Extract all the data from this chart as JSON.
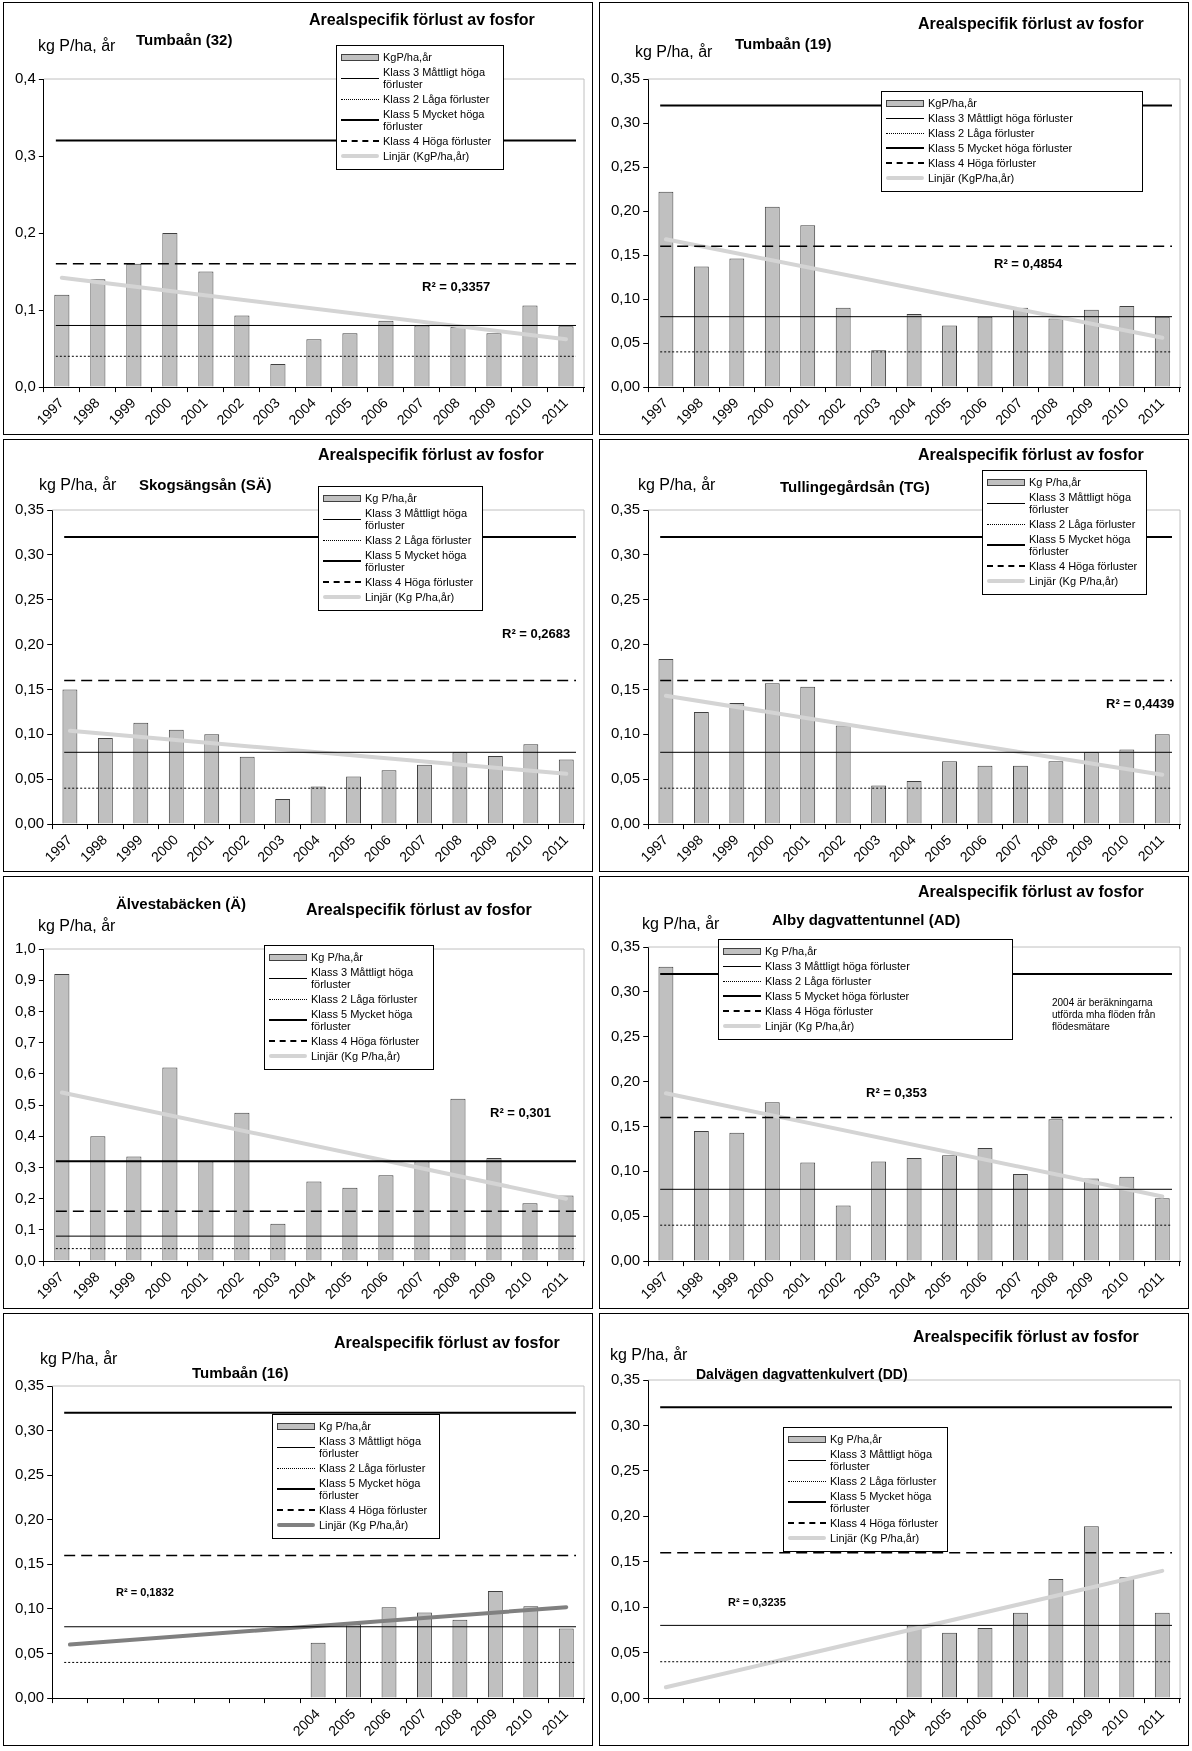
{
  "chart_data": [
    {
      "type": "bar",
      "title": "Arealspecifik förlust av fosfor",
      "subtitle": "Tumbaån (32)",
      "ylabel": "kg P/ha, år",
      "categories": [
        "1997",
        "1998",
        "1999",
        "2000",
        "2001",
        "2002",
        "2003",
        "2004",
        "2005",
        "2006",
        "2007",
        "2008",
        "2009",
        "2010",
        "2011"
      ],
      "series": [
        {
          "name": "KgP/ha,år",
          "color": "#c0c0c0",
          "values": [
            0.12,
            0.14,
            0.16,
            0.2,
            0.15,
            0.093,
            0.03,
            0.062,
            0.07,
            0.086,
            0.08,
            0.078,
            0.07,
            0.106,
            0.079
          ]
        },
        {
          "name": "Linjär (KgP/ha,år)",
          "type": "line",
          "color": "#d4d4d4",
          "values": [
            0.142,
            null,
            null,
            null,
            null,
            null,
            null,
            null,
            null,
            null,
            null,
            null,
            null,
            null,
            0.062
          ]
        }
      ],
      "ylim": [
        0,
        0.4
      ],
      "yticks": [
        {
          "value": 0,
          "label": "0,0"
        },
        {
          "value": 0.1,
          "label": "0,1"
        },
        {
          "value": 0.2,
          "label": "0,2"
        },
        {
          "value": 0.3,
          "label": "0,3"
        },
        {
          "value": 0.4,
          "label": "0,4"
        }
      ],
      "ref_lines": [
        {
          "axis": "y",
          "value": 0.08,
          "label": "Klass 3 Måttligt höga förluster",
          "color": "#000000",
          "line_style": "solid"
        },
        {
          "axis": "y",
          "value": 0.04,
          "label": "Klass 2 Låga förluster",
          "color": "#000000",
          "line_style": "dotted"
        },
        {
          "axis": "y",
          "value": 0.32,
          "label": "Klass 5 Mycket höga förluster",
          "color": "#000000",
          "line_style": "solid"
        },
        {
          "axis": "y",
          "value": 0.16,
          "label": "Klass 4 Höga förluster",
          "color": "#000000",
          "line_style": "dashed"
        }
      ],
      "annotations": [
        "R² = 0,3357"
      ],
      "legend": "top"
    },
    {
      "type": "bar",
      "title": "Arealspecifik förlust av fosfor",
      "subtitle": "Tumbaån (19)",
      "ylabel": "kg P/ha, år",
      "categories": [
        "1997",
        "1998",
        "1999",
        "2000",
        "2001",
        "2002",
        "2003",
        "2004",
        "2005",
        "2006",
        "2007",
        "2008",
        "2009",
        "2010",
        "2011"
      ],
      "series": [
        {
          "name": "KgP/ha,år",
          "color": "#c0c0c0",
          "values": [
            0.222,
            0.137,
            0.146,
            0.205,
            0.184,
            0.09,
            0.042,
            0.083,
            0.07,
            0.08,
            0.09,
            0.078,
            0.088,
            0.092,
            0.08
          ]
        },
        {
          "name": "Linjär (KgP/ha,år)",
          "type": "line",
          "color": "#d4d4d4",
          "values": [
            0.168,
            null,
            null,
            null,
            null,
            null,
            null,
            null,
            null,
            null,
            null,
            null,
            null,
            null,
            0.056
          ]
        }
      ],
      "ylim": [
        0,
        0.35
      ],
      "yticks": [
        {
          "value": 0,
          "label": "0,00"
        },
        {
          "value": 0.05,
          "label": "0,05"
        },
        {
          "value": 0.1,
          "label": "0,10"
        },
        {
          "value": 0.15,
          "label": "0,15"
        },
        {
          "value": 0.2,
          "label": "0,20"
        },
        {
          "value": 0.25,
          "label": "0,25"
        },
        {
          "value": 0.3,
          "label": "0,30"
        },
        {
          "value": 0.35,
          "label": "0,35"
        }
      ],
      "ref_lines": [
        {
          "axis": "y",
          "value": 0.08,
          "label": "Klass 3 Måttligt höga förluster",
          "color": "#000000",
          "line_style": "solid"
        },
        {
          "axis": "y",
          "value": 0.04,
          "label": "Klass 2 Låga förluster",
          "color": "#000000",
          "line_style": "dotted"
        },
        {
          "axis": "y",
          "value": 0.32,
          "label": "Klass 5 Mycket höga förluster",
          "color": "#000000",
          "line_style": "solid"
        },
        {
          "axis": "y",
          "value": 0.16,
          "label": "Klass 4 Höga förluster",
          "color": "#000000",
          "line_style": "dashed"
        }
      ],
      "annotations": [
        "R² = 0,4854"
      ],
      "legend": "top"
    },
    {
      "type": "bar",
      "title": "Arealspecifik förlust av fosfor",
      "subtitle": "Skogsängsån (SÄ)",
      "ylabel": "kg P/ha, år",
      "categories": [
        "1997",
        "1998",
        "1999",
        "2000",
        "2001",
        "2002",
        "2003",
        "2004",
        "2005",
        "2006",
        "2007",
        "2008",
        "2009",
        "2010",
        "2011"
      ],
      "series": [
        {
          "name": "Kg P/ha,år",
          "color": "#c0c0c0",
          "values": [
            0.15,
            0.096,
            0.113,
            0.105,
            0.1,
            0.075,
            0.028,
            0.042,
            0.053,
            0.06,
            0.066,
            0.08,
            0.076,
            0.089,
            0.072
          ]
        },
        {
          "name": "Linjär (Kg P/ha,år)",
          "type": "line",
          "color": "#d4d4d4",
          "values": [
            0.104,
            null,
            null,
            null,
            null,
            null,
            null,
            null,
            null,
            null,
            null,
            null,
            null,
            null,
            0.056
          ]
        }
      ],
      "ylim": [
        0,
        0.35
      ],
      "yticks": [
        {
          "value": 0,
          "label": "0,00"
        },
        {
          "value": 0.05,
          "label": "0,05"
        },
        {
          "value": 0.1,
          "label": "0,10"
        },
        {
          "value": 0.15,
          "label": "0,15"
        },
        {
          "value": 0.2,
          "label": "0,20"
        },
        {
          "value": 0.25,
          "label": "0,25"
        },
        {
          "value": 0.3,
          "label": "0,30"
        },
        {
          "value": 0.35,
          "label": "0,35"
        }
      ],
      "ref_lines": [
        {
          "axis": "y",
          "value": 0.08,
          "label": "Klass 3 Måttligt höga förluster",
          "color": "#000000",
          "line_style": "solid"
        },
        {
          "axis": "y",
          "value": 0.04,
          "label": "Klass 2 Låga förluster",
          "color": "#000000",
          "line_style": "dotted"
        },
        {
          "axis": "y",
          "value": 0.32,
          "label": "Klass 5 Mycket höga förluster",
          "color": "#000000",
          "line_style": "solid"
        },
        {
          "axis": "y",
          "value": 0.16,
          "label": "Klass 4 Höga förluster",
          "color": "#000000",
          "line_style": "dashed"
        }
      ],
      "annotations": [
        "R² = 0,2683"
      ],
      "legend": "top"
    },
    {
      "type": "bar",
      "title": "Arealspecifik förlust av fosfor",
      "subtitle": "Tullingegårdsån (TG)",
      "ylabel": "kg P/ha, år",
      "categories": [
        "1997",
        "1998",
        "1999",
        "2000",
        "2001",
        "2002",
        "2003",
        "2004",
        "2005",
        "2006",
        "2007",
        "2008",
        "2009",
        "2010",
        "2011"
      ],
      "series": [
        {
          "name": "Kg P/ha,år",
          "color": "#c0c0c0",
          "values": [
            0.184,
            0.125,
            0.135,
            0.157,
            0.153,
            0.11,
            0.043,
            0.048,
            0.07,
            0.065,
            0.065,
            0.07,
            0.08,
            0.083,
            0.1
          ]
        },
        {
          "name": "Linjär (Kg P/ha,år)",
          "type": "line",
          "color": "#d4d4d4",
          "values": [
            0.143,
            null,
            null,
            null,
            null,
            null,
            null,
            null,
            null,
            null,
            null,
            null,
            null,
            null,
            0.055
          ]
        }
      ],
      "ylim": [
        0,
        0.35
      ],
      "yticks": [
        {
          "value": 0,
          "label": "0,00"
        },
        {
          "value": 0.05,
          "label": "0,05"
        },
        {
          "value": 0.1,
          "label": "0,10"
        },
        {
          "value": 0.15,
          "label": "0,15"
        },
        {
          "value": 0.2,
          "label": "0,20"
        },
        {
          "value": 0.25,
          "label": "0,25"
        },
        {
          "value": 0.3,
          "label": "0,30"
        },
        {
          "value": 0.35,
          "label": "0,35"
        }
      ],
      "ref_lines": [
        {
          "axis": "y",
          "value": 0.08,
          "label": "Klass 3 Måttligt höga förluster",
          "color": "#000000",
          "line_style": "solid"
        },
        {
          "axis": "y",
          "value": 0.04,
          "label": "Klass 2 Låga förluster",
          "color": "#000000",
          "line_style": "dotted"
        },
        {
          "axis": "y",
          "value": 0.32,
          "label": "Klass 5 Mycket höga förluster",
          "color": "#000000",
          "line_style": "solid"
        },
        {
          "axis": "y",
          "value": 0.16,
          "label": "Klass 4 Höga förluster",
          "color": "#000000",
          "line_style": "dashed"
        }
      ],
      "annotations": [
        "R² = 0,4439"
      ],
      "legend": "top right"
    },
    {
      "type": "bar",
      "title": "Arealspecifik förlust av fosfor",
      "subtitle": "Älvestabäcken (Ä)",
      "ylabel": "kg P/ha, år",
      "categories": [
        "1997",
        "1998",
        "1999",
        "2000",
        "2001",
        "2002",
        "2003",
        "2004",
        "2005",
        "2006",
        "2007",
        "2008",
        "2009",
        "2010",
        "2011"
      ],
      "series": [
        {
          "name": "Kg P/ha,år",
          "color": "#c0c0c0",
          "values": [
            0.92,
            0.4,
            0.335,
            0.62,
            0.32,
            0.475,
            0.12,
            0.255,
            0.235,
            0.275,
            0.32,
            0.52,
            0.33,
            0.185,
            0.21
          ]
        },
        {
          "name": "Linjär (Kg P/ha,år)",
          "type": "line",
          "color": "#d4d4d4",
          "values": [
            0.54,
            null,
            null,
            null,
            null,
            null,
            null,
            null,
            null,
            null,
            null,
            null,
            null,
            null,
            0.2
          ]
        }
      ],
      "ylim": [
        0,
        1
      ],
      "yticks": [
        {
          "value": 0,
          "label": "0,0"
        },
        {
          "value": 0.1,
          "label": "0,1"
        },
        {
          "value": 0.2,
          "label": "0,2"
        },
        {
          "value": 0.3,
          "label": "0,3"
        },
        {
          "value": 0.4,
          "label": "0,4"
        },
        {
          "value": 0.5,
          "label": "0,5"
        },
        {
          "value": 0.6,
          "label": "0,6"
        },
        {
          "value": 0.7,
          "label": "0,7"
        },
        {
          "value": 0.8,
          "label": "0,8"
        },
        {
          "value": 0.9,
          "label": "0,9"
        },
        {
          "value": 1,
          "label": "1,0"
        }
      ],
      "ref_lines": [
        {
          "axis": "y",
          "value": 0.08,
          "label": "Klass 3 Måttligt höga förluster",
          "color": "#000000",
          "line_style": "solid"
        },
        {
          "axis": "y",
          "value": 0.04,
          "label": "Klass 2 Låga förluster",
          "color": "#000000",
          "line_style": "dotted"
        },
        {
          "axis": "y",
          "value": 0.32,
          "label": "Klass 5 Mycket höga förluster",
          "color": "#000000",
          "line_style": "solid"
        },
        {
          "axis": "y",
          "value": 0.16,
          "label": "Klass 4 Höga förluster",
          "color": "#000000",
          "line_style": "dashed"
        }
      ],
      "annotations": [
        "R² = 0,301"
      ],
      "legend": "top"
    },
    {
      "type": "bar",
      "title": "Arealspecifik förlust av fosfor",
      "subtitle": "Alby dagvattentunnel (AD)",
      "ylabel": "kg P/ha, år",
      "categories": [
        "1997",
        "1998",
        "1999",
        "2000",
        "2001",
        "2002",
        "2003",
        "2004",
        "2005",
        "2006",
        "2007",
        "2008",
        "2009",
        "2010",
        "2011"
      ],
      "series": [
        {
          "name": "Kg P/ha,år",
          "color": "#c0c0c0",
          "values": [
            0.328,
            0.145,
            0.143,
            0.177,
            0.11,
            0.062,
            0.111,
            0.115,
            0.118,
            0.126,
            0.097,
            0.158,
            0.092,
            0.094,
            0.07
          ]
        },
        {
          "name": "Linjär (Kg P/ha,år)",
          "type": "line",
          "color": "#d4d4d4",
          "values": [
            0.187,
            null,
            null,
            null,
            null,
            null,
            null,
            null,
            null,
            null,
            null,
            null,
            null,
            null,
            0.072
          ]
        }
      ],
      "ylim": [
        0,
        0.35
      ],
      "yticks": [
        {
          "value": 0,
          "label": "0,00"
        },
        {
          "value": 0.05,
          "label": "0,05"
        },
        {
          "value": 0.1,
          "label": "0,10"
        },
        {
          "value": 0.15,
          "label": "0,15"
        },
        {
          "value": 0.2,
          "label": "0,20"
        },
        {
          "value": 0.25,
          "label": "0,25"
        },
        {
          "value": 0.3,
          "label": "0,30"
        },
        {
          "value": 0.35,
          "label": "0,35"
        }
      ],
      "ref_lines": [
        {
          "axis": "y",
          "value": 0.08,
          "label": "Klass 3 Måttligt höga förluster",
          "color": "#000000",
          "line_style": "solid"
        },
        {
          "axis": "y",
          "value": 0.04,
          "label": "Klass 2 Låga förluster",
          "color": "#000000",
          "line_style": "dotted"
        },
        {
          "axis": "y",
          "value": 0.32,
          "label": "Klass 5 Mycket höga förluster",
          "color": "#000000",
          "line_style": "solid"
        },
        {
          "axis": "y",
          "value": 0.16,
          "label": "Klass 4 Höga förluster",
          "color": "#000000",
          "line_style": "dashed"
        }
      ],
      "annotations": [
        "R² = 0,353",
        "2004 är beräkningarna utförda mha flöden från flödesmätare"
      ],
      "legend": "top"
    },
    {
      "type": "bar",
      "title": "Arealspecifik förlust av fosfor",
      "subtitle": "Tumbaån (16)",
      "ylabel": "kg P/ha, år",
      "categories": [
        null,
        null,
        null,
        null,
        null,
        null,
        null,
        "2004",
        "2005",
        "2006",
        "2007",
        "2008",
        "2009",
        "2010",
        "2011"
      ],
      "series": [
        {
          "name": "Kg P/ha,år",
          "color": "#c0c0c0",
          "values": [
            null,
            null,
            null,
            null,
            null,
            null,
            null,
            0.062,
            0.083,
            0.102,
            0.096,
            0.088,
            0.12,
            0.103,
            0.078
          ]
        },
        {
          "name": "Linjär (Kg P/ha,år)",
          "type": "line",
          "color": "#808080",
          "values": [
            0.06,
            null,
            null,
            null,
            null,
            null,
            null,
            null,
            null,
            null,
            null,
            null,
            null,
            null,
            0.102
          ]
        }
      ],
      "ylim": [
        0,
        0.35
      ],
      "yticks": [
        {
          "value": 0,
          "label": "0,00"
        },
        {
          "value": 0.05,
          "label": "0,05"
        },
        {
          "value": 0.1,
          "label": "0,10"
        },
        {
          "value": 0.15,
          "label": "0,15"
        },
        {
          "value": 0.2,
          "label": "0,20"
        },
        {
          "value": 0.25,
          "label": "0,25"
        },
        {
          "value": 0.3,
          "label": "0,30"
        },
        {
          "value": 0.35,
          "label": "0,35"
        }
      ],
      "ref_lines": [
        {
          "axis": "y",
          "value": 0.08,
          "label": "Klass 3 Måttligt höga förluster",
          "color": "#000000",
          "line_style": "solid"
        },
        {
          "axis": "y",
          "value": 0.04,
          "label": "Klass 2 Låga förluster",
          "color": "#000000",
          "line_style": "dotted"
        },
        {
          "axis": "y",
          "value": 0.32,
          "label": "Klass 5 Mycket höga förluster",
          "color": "#000000",
          "line_style": "solid"
        },
        {
          "axis": "y",
          "value": 0.16,
          "label": "Klass 4 Höga förluster",
          "color": "#000000",
          "line_style": "dashed"
        }
      ],
      "annotations": [
        "R² = 0,1832"
      ],
      "legend": "top"
    },
    {
      "type": "bar",
      "title": "Arealspecifik förlust av fosfor",
      "subtitle": "Dalvägen dagvattenkulvert (DD)",
      "ylabel": "kg P/ha, år",
      "categories": [
        null,
        null,
        null,
        null,
        null,
        null,
        null,
        "2004",
        "2005",
        "2006",
        "2007",
        "2008",
        "2009",
        "2010",
        "2011"
      ],
      "series": [
        {
          "name": "Kg P/ha,år",
          "color": "#c0c0c0",
          "values": [
            null,
            null,
            null,
            null,
            null,
            null,
            null,
            0.08,
            0.072,
            0.077,
            0.094,
            0.131,
            0.189,
            0.133,
            0.094
          ]
        },
        {
          "name": "Linjär (Kg P/ha,år)",
          "type": "line",
          "color": "#d4d4d4",
          "values": [
            0.012,
            null,
            null,
            null,
            null,
            null,
            null,
            null,
            null,
            null,
            null,
            null,
            null,
            null,
            0.14
          ]
        }
      ],
      "ylim": [
        0,
        0.35
      ],
      "yticks": [
        {
          "value": 0,
          "label": "0,00"
        },
        {
          "value": 0.05,
          "label": "0,05"
        },
        {
          "value": 0.1,
          "label": "0,10"
        },
        {
          "value": 0.15,
          "label": "0,15"
        },
        {
          "value": 0.2,
          "label": "0,20"
        },
        {
          "value": 0.25,
          "label": "0,25"
        },
        {
          "value": 0.3,
          "label": "0,30"
        },
        {
          "value": 0.35,
          "label": "0,35"
        }
      ],
      "ref_lines": [
        {
          "axis": "y",
          "value": 0.08,
          "label": "Klass 3 Måttligt höga förluster",
          "color": "#000000",
          "line_style": "solid"
        },
        {
          "axis": "y",
          "value": 0.04,
          "label": "Klass 2 Låga förluster",
          "color": "#000000",
          "line_style": "dotted"
        },
        {
          "axis": "y",
          "value": 0.32,
          "label": "Klass 5 Mycket höga förluster",
          "color": "#000000",
          "line_style": "solid"
        },
        {
          "axis": "y",
          "value": 0.16,
          "label": "Klass 4 Höga förluster",
          "color": "#000000",
          "line_style": "dashed"
        }
      ],
      "annotations": [
        "R² = 0,3235"
      ],
      "legend": "top"
    }
  ]
}
